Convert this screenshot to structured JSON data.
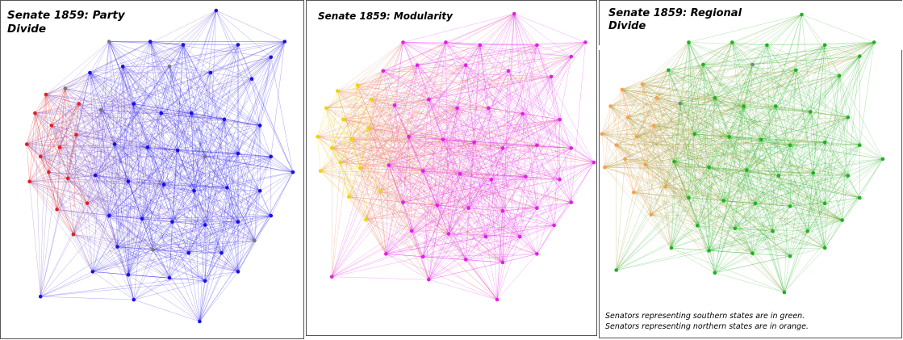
{
  "panels": [
    {
      "title_line1": "Senate 1859: Party",
      "title_line2": "Divide",
      "group_a_color": "#e02020",
      "group_b_color": "#1a10e8",
      "minor_color": "#777777"
    },
    {
      "title_line1": "Senate 1859: Modularity",
      "title_line2": "",
      "group_a_color": "#e8d800",
      "group_b_color": "#e020e8",
      "mixed_color": "#e88a70"
    },
    {
      "title_line1": "Senate 1859: Regional",
      "title_line2": "Divide",
      "group_a_color": "#f4a050",
      "group_b_color": "#22b022",
      "minor_color": "#808080"
    }
  ],
  "footnote": {
    "line1": "Senators representing southern states are in green.",
    "line2": "Senators representing northern states are in orange."
  }
}
